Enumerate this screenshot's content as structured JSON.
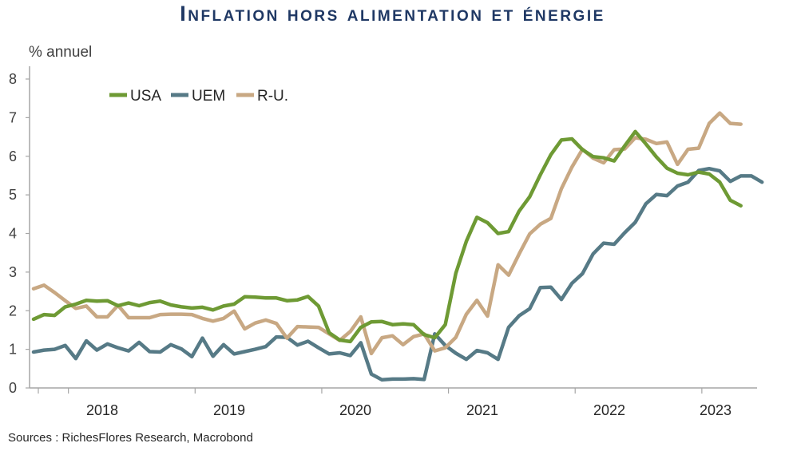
{
  "title": "Inflation hors alimentation et énergie",
  "ylabel": "% annuel",
  "source": "Sources : RichesFlores Research, Macrobond",
  "chart_data": {
    "type": "line",
    "title": "Inflation hors alimentation et énergie",
    "ylabel": "% annuel",
    "xlabel": "",
    "ylim": [
      0,
      8
    ],
    "yticks": [
      "0",
      "1",
      "2",
      "3",
      "4",
      "5",
      "6",
      "7",
      "8"
    ],
    "xtick_labels": [
      "2018",
      "2019",
      "2020",
      "2021",
      "2022",
      "2023"
    ],
    "x_start": "2017-10",
    "legend_position": "top-left",
    "grid": false,
    "series": [
      {
        "name": "USA",
        "color": "#6e9a34",
        "values": [
          1.78,
          1.9,
          1.88,
          2.1,
          2.17,
          2.27,
          2.25,
          2.26,
          2.13,
          2.2,
          2.13,
          2.21,
          2.25,
          2.15,
          2.1,
          2.07,
          2.09,
          2.02,
          2.12,
          2.17,
          2.36,
          2.35,
          2.33,
          2.33,
          2.26,
          2.28,
          2.37,
          2.12,
          1.43,
          1.24,
          1.2,
          1.57,
          1.71,
          1.72,
          1.64,
          1.66,
          1.64,
          1.38,
          1.3,
          1.64,
          2.97,
          3.8,
          4.42,
          4.28,
          4.0,
          4.05,
          4.58,
          4.95,
          5.52,
          6.04,
          6.42,
          6.45,
          6.17,
          5.99,
          5.96,
          5.88,
          6.27,
          6.64,
          6.32,
          5.98,
          5.69,
          5.56,
          5.52,
          5.59,
          5.54,
          5.33,
          4.86,
          4.72
        ]
      },
      {
        "name": "UEM",
        "color": "#567a86",
        "values": [
          0.93,
          0.98,
          1.0,
          1.1,
          0.76,
          1.22,
          0.98,
          1.14,
          1.04,
          0.96,
          1.18,
          0.94,
          0.93,
          1.12,
          1.01,
          0.81,
          1.29,
          0.82,
          1.12,
          0.88,
          0.94,
          1.0,
          1.07,
          1.32,
          1.31,
          1.11,
          1.21,
          1.04,
          0.88,
          0.91,
          0.84,
          1.17,
          0.36,
          0.21,
          0.23,
          0.23,
          0.24,
          0.22,
          1.4,
          1.1,
          0.9,
          0.74,
          0.97,
          0.91,
          0.74,
          1.57,
          1.87,
          2.05,
          2.6,
          2.61,
          2.29,
          2.71,
          2.96,
          3.47,
          3.75,
          3.72,
          4.02,
          4.29,
          4.77,
          5.01,
          4.98,
          5.23,
          5.33,
          5.63,
          5.68,
          5.62,
          5.35,
          5.49,
          5.49,
          5.33
        ]
      },
      {
        "name": "R-U.",
        "color": "#c8a883",
        "values": [
          2.57,
          2.66,
          2.47,
          2.26,
          2.06,
          2.12,
          1.84,
          1.84,
          2.14,
          1.82,
          1.82,
          1.82,
          1.9,
          1.91,
          1.91,
          1.9,
          1.8,
          1.73,
          1.8,
          1.99,
          1.53,
          1.68,
          1.76,
          1.67,
          1.29,
          1.59,
          1.58,
          1.57,
          1.4,
          1.23,
          1.46,
          1.84,
          0.89,
          1.3,
          1.35,
          1.12,
          1.33,
          1.4,
          0.96,
          1.04,
          1.31,
          1.91,
          2.27,
          1.86,
          3.19,
          2.92,
          3.47,
          3.99,
          4.24,
          4.39,
          5.16,
          5.72,
          6.18,
          5.95,
          5.83,
          6.17,
          6.19,
          6.48,
          6.44,
          6.33,
          6.37,
          5.79,
          6.18,
          6.21,
          6.85,
          7.12,
          6.85,
          6.83
        ]
      }
    ]
  }
}
